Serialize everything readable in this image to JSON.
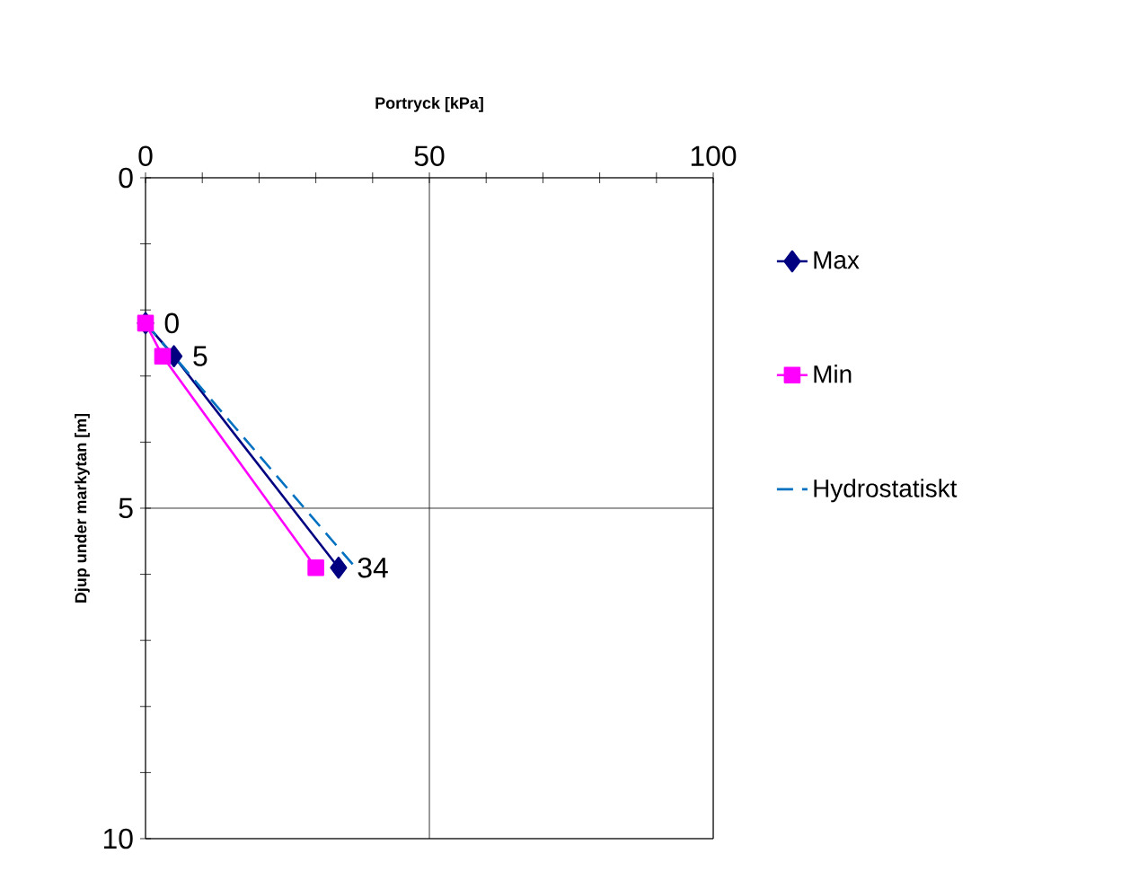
{
  "chart_data": {
    "type": "line",
    "xlabel": "Portryck  [kPa]",
    "ylabel": "Djup under markytan [m]",
    "series": [
      {
        "name": "Max",
        "color": "#000080",
        "marker": "diamond",
        "x": [
          0,
          5,
          34
        ],
        "values": [
          2.2,
          2.7,
          5.9
        ]
      },
      {
        "name": "Min",
        "color": "#ff00ff",
        "marker": "square",
        "x": [
          0,
          3,
          30
        ],
        "values": [
          2.2,
          2.7,
          5.9
        ]
      },
      {
        "name": "Hydrostatiskt",
        "color": "#0070c0",
        "marker": "none",
        "line_style": "dashed",
        "x": [
          0,
          37
        ],
        "values": [
          2.2,
          5.9
        ]
      }
    ],
    "annotations": [
      {
        "text": "0",
        "x": 0,
        "y": 2.2
      },
      {
        "text": "5",
        "x": 5,
        "y": 2.7
      },
      {
        "text": "34",
        "x": 34,
        "y": 5.9
      }
    ],
    "xlim": [
      0,
      100
    ],
    "xticks": [
      0,
      {
        "value": 10,
        "label": null
      },
      {
        "value": 20,
        "label": null
      },
      {
        "value": 30,
        "label": null
      },
      {
        "value": 40,
        "label": null
      },
      50,
      {
        "value": 60,
        "label": null
      },
      {
        "value": 70,
        "label": null
      },
      {
        "value": 80,
        "label": null
      },
      {
        "value": 90,
        "label": null
      },
      100
    ],
    "ylim": [
      10,
      0
    ],
    "yticks": [
      0,
      {
        "value": 1,
        "label": null
      },
      {
        "value": 2,
        "label": null
      },
      {
        "value": 3,
        "label": null
      },
      {
        "value": 4,
        "label": null
      },
      5,
      {
        "value": 6,
        "label": null
      },
      {
        "value": 7,
        "label": null
      },
      {
        "value": 8,
        "label": null
      },
      {
        "value": 9,
        "label": null
      },
      10
    ],
    "grid": true,
    "legend": "right"
  }
}
